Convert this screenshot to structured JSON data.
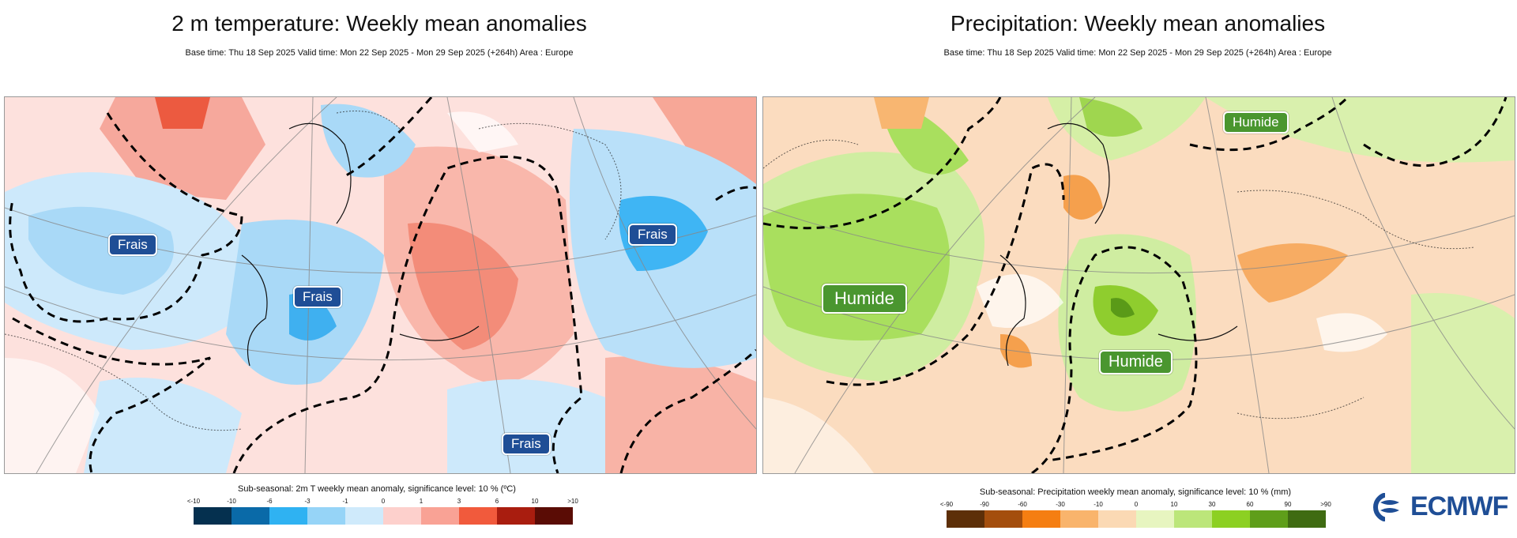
{
  "left_panel": {
    "title": "2 m temperature: Weekly mean anomalies",
    "subtitle": "Base time: Thu 18 Sep 2025 Valid time: Mon 22 Sep 2025 - Mon 29 Sep 2025 (+264h) Area : Europe",
    "labels": [
      "Frais",
      "Frais",
      "Frais",
      "Frais"
    ],
    "legend": {
      "title": "Sub-seasonal: 2m T weekly mean anomaly, significance level: 10 % (ºC)",
      "ticks": [
        "<-10",
        "-10",
        "-6",
        "-3",
        "-1",
        "0",
        "1",
        "3",
        "6",
        "10",
        ">10"
      ],
      "colors": [
        "#05304f",
        "#0a6aa8",
        "#2fb2f2",
        "#96d4f7",
        "#cfeafb",
        "#fdd0cc",
        "#f9a295",
        "#f15a3c",
        "#a91d0f",
        "#5a0c05"
      ]
    }
  },
  "right_panel": {
    "title": "Precipitation: Weekly mean anomalies",
    "subtitle": "Base time: Thu 18 Sep 2025 Valid time: Mon 22 Sep 2025 - Mon 29 Sep 2025 (+264h) Area : Europe",
    "labels": [
      "Humide",
      "Humide",
      "Humide"
    ],
    "legend": {
      "title": "Sub-seasonal: Precipitation weekly mean anomaly, significance level: 10 % (mm)",
      "ticks": [
        "<-90",
        "-90",
        "-60",
        "-30",
        "-10",
        "0",
        "10",
        "30",
        "60",
        "90",
        ">90"
      ],
      "colors": [
        "#5d2f08",
        "#a44e0d",
        "#f57e12",
        "#f9b46c",
        "#fbd9b4",
        "#e7f5c0",
        "#bce67a",
        "#8cd022",
        "#5f9e1a",
        "#3f6b12"
      ]
    }
  },
  "logo": {
    "text": "ECMWF"
  }
}
